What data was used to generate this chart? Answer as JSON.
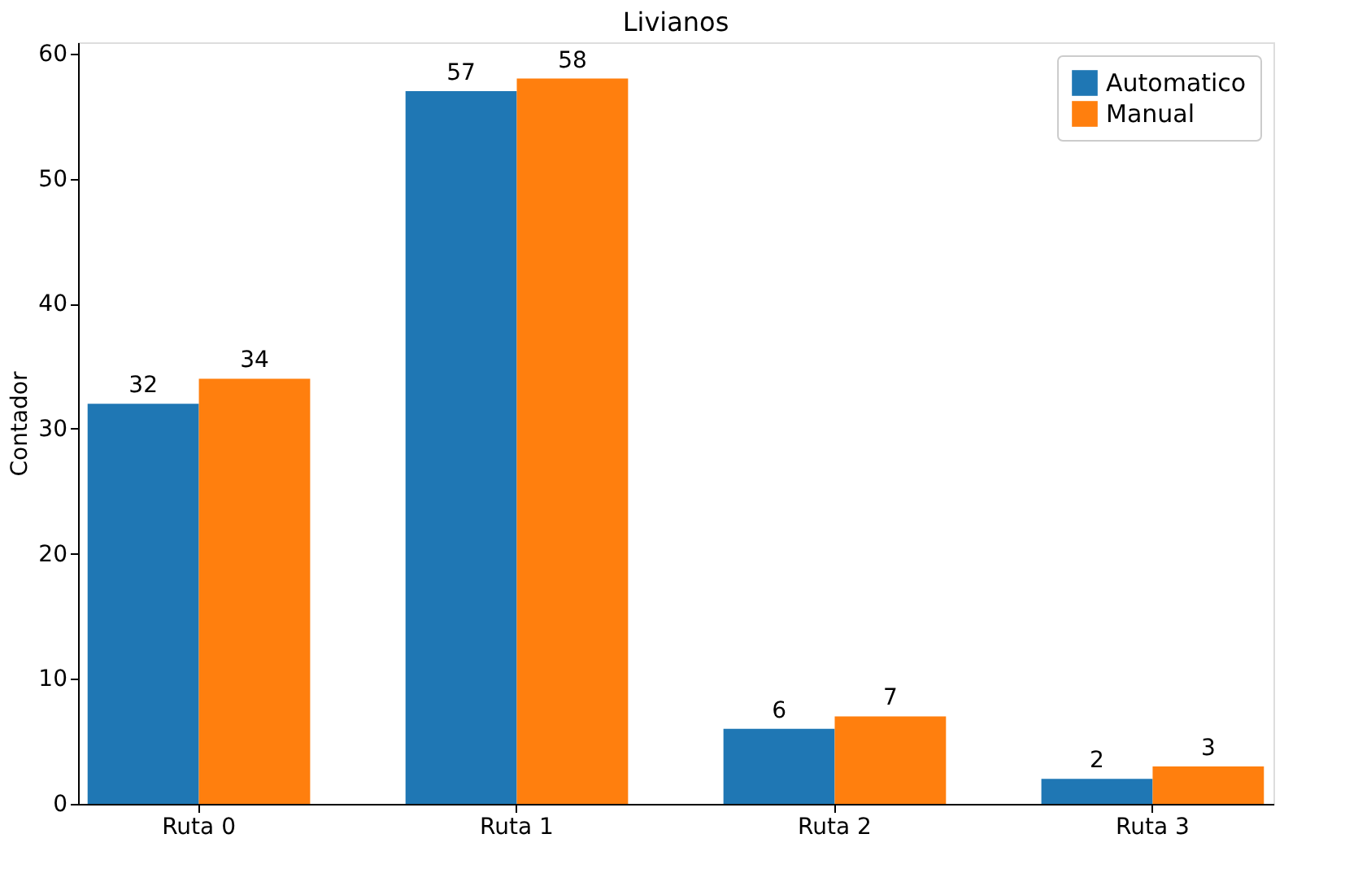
{
  "chart_data": {
    "type": "bar",
    "title": "Livianos",
    "ylabel": "Contador",
    "categories": [
      "Ruta 0",
      "Ruta 1",
      "Ruta 2",
      "Ruta 3"
    ],
    "series": [
      {
        "name": "Automatico",
        "color": "#1f77b4",
        "values": [
          32,
          57,
          6,
          2
        ]
      },
      {
        "name": "Manual",
        "color": "#ff7f0e",
        "values": [
          34,
          58,
          7,
          3
        ]
      }
    ],
    "ylim": [
      0,
      60.9
    ],
    "yticks": [
      0,
      10,
      20,
      30,
      40,
      50,
      60
    ],
    "data_labels": true,
    "legend": "top right",
    "grid": false
  }
}
